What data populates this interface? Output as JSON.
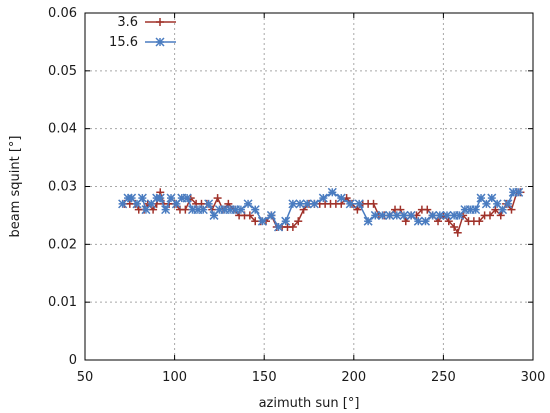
{
  "chart_data": {
    "type": "line",
    "title": "",
    "xlabel": "azimuth sun [°]",
    "ylabel": "beam squint [°]",
    "xlim": [
      50,
      300
    ],
    "ylim": [
      0,
      0.06
    ],
    "xticks": [
      50,
      100,
      150,
      200,
      250,
      300
    ],
    "yticks": [
      0,
      0.01,
      0.02,
      0.03,
      0.04,
      0.05,
      0.06
    ],
    "xtick_labels": [
      "50",
      "100",
      "150",
      "200",
      "250",
      "300"
    ],
    "ytick_labels": [
      "0",
      "0.01",
      "0.02",
      "0.03",
      "0.04",
      "0.05",
      "0.06"
    ],
    "grid": true,
    "legend_position": "top-left",
    "series": [
      {
        "name": "3.6",
        "color": "#a0322a",
        "marker": "plus",
        "x": [
          72,
          75,
          78,
          80,
          83,
          85,
          88,
          90,
          92,
          94,
          97,
          100,
          103,
          106,
          109,
          112,
          115,
          118,
          121,
          124,
          127,
          130,
          133,
          136,
          139,
          142,
          145,
          148,
          151,
          154,
          157,
          160,
          163,
          166,
          169,
          172,
          175,
          178,
          181,
          184,
          187,
          190,
          193,
          196,
          199,
          202,
          205,
          208,
          211,
          214,
          217,
          220,
          223,
          226,
          229,
          232,
          235,
          238,
          241,
          244,
          247,
          250,
          253,
          256,
          258,
          261,
          264,
          267,
          270,
          273,
          276,
          279,
          282,
          285,
          288,
          291,
          293
        ],
        "y": [
          0.027,
          0.027,
          0.027,
          0.026,
          0.026,
          0.027,
          0.026,
          0.027,
          0.029,
          0.027,
          0.027,
          0.027,
          0.026,
          0.026,
          0.028,
          0.027,
          0.027,
          0.027,
          0.026,
          0.028,
          0.026,
          0.027,
          0.026,
          0.025,
          0.025,
          0.025,
          0.024,
          0.024,
          0.024,
          0.025,
          0.023,
          0.023,
          0.023,
          0.023,
          0.024,
          0.026,
          0.027,
          0.027,
          0.027,
          0.027,
          0.027,
          0.027,
          0.027,
          0.028,
          0.027,
          0.026,
          0.027,
          0.027,
          0.027,
          0.025,
          0.025,
          0.025,
          0.026,
          0.026,
          0.024,
          0.025,
          0.025,
          0.026,
          0.026,
          0.025,
          0.024,
          0.025,
          0.024,
          0.023,
          0.022,
          0.025,
          0.024,
          0.024,
          0.024,
          0.025,
          0.025,
          0.026,
          0.025,
          0.027,
          0.026,
          0.029,
          0.029
        ]
      },
      {
        "name": "15.6",
        "color": "#4a7cc0",
        "marker": "star",
        "x": [
          71,
          74,
          76,
          79,
          82,
          84,
          87,
          90,
          92,
          95,
          98,
          101,
          104,
          107,
          110,
          113,
          116,
          119,
          122,
          125,
          128,
          131,
          134,
          137,
          141,
          145,
          149,
          154,
          158,
          162,
          166,
          170,
          174,
          178,
          183,
          188,
          193,
          198,
          203,
          208,
          212,
          216,
          220,
          224,
          228,
          232,
          236,
          240,
          244,
          248,
          252,
          256,
          259,
          262,
          265,
          268,
          271,
          274,
          277,
          280,
          283,
          286,
          289,
          292
        ],
        "y": [
          0.027,
          0.028,
          0.028,
          0.027,
          0.028,
          0.026,
          0.027,
          0.028,
          0.028,
          0.026,
          0.028,
          0.027,
          0.028,
          0.028,
          0.026,
          0.026,
          0.026,
          0.027,
          0.025,
          0.026,
          0.026,
          0.026,
          0.026,
          0.026,
          0.027,
          0.026,
          0.024,
          0.025,
          0.023,
          0.024,
          0.027,
          0.027,
          0.027,
          0.027,
          0.028,
          0.029,
          0.028,
          0.027,
          0.027,
          0.024,
          0.025,
          0.025,
          0.025,
          0.025,
          0.025,
          0.025,
          0.024,
          0.024,
          0.025,
          0.025,
          0.025,
          0.025,
          0.025,
          0.026,
          0.026,
          0.026,
          0.028,
          0.027,
          0.028,
          0.027,
          0.026,
          0.027,
          0.029,
          0.029
        ]
      }
    ]
  }
}
